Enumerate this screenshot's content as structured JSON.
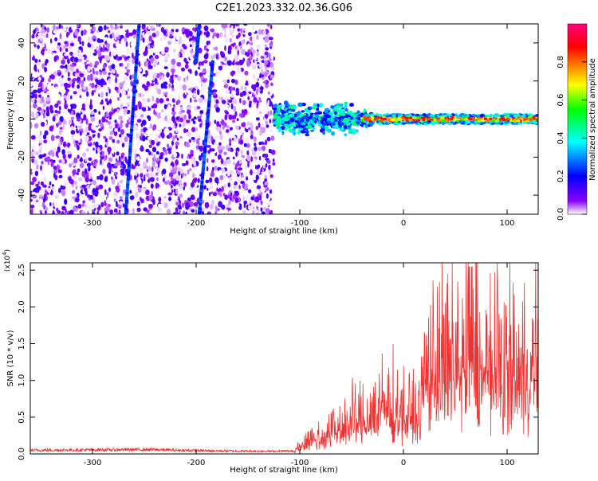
{
  "title": "C2E1.2023.332.02.36.G06",
  "chart_data": [
    {
      "type": "heatmap",
      "xlabel": "Height of straight line (km)",
      "ylabel": "Frequency (Hz)",
      "xlim": [
        -360,
        130
      ],
      "ylim": [
        -50,
        50
      ],
      "x_ticks": [
        -300,
        -200,
        -100,
        0,
        100
      ],
      "y_ticks": [
        -40,
        -20,
        0,
        20,
        40
      ],
      "grid": false,
      "colorbar": {
        "label": "Normalized spectral amplitude",
        "range": [
          0,
          1
        ],
        "ticks": [
          0.0,
          0.2,
          0.4,
          0.6,
          0.8
        ],
        "colors": [
          "#ffffff",
          "#8a00ff",
          "#0000ff",
          "#00ffff",
          "#00ff00",
          "#ffff00",
          "#ff8000",
          "#ff0000",
          "#ff0080"
        ]
      },
      "features": [
        {
          "kind": "scatter_noise",
          "x_range": [
            -360,
            -125
          ],
          "y_range": [
            -50,
            50
          ],
          "amplitude": 0.1
        },
        {
          "kind": "streak",
          "x_start": -268,
          "y_start": -50,
          "x_end": -255,
          "y_end": 50,
          "amplitude": 0.22
        },
        {
          "kind": "streak",
          "x_start": -197,
          "y_start": -50,
          "x_end": -184,
          "y_end": 30,
          "amplitude": 0.22
        },
        {
          "kind": "streak",
          "x_start": -200,
          "y_start": 30,
          "x_end": -197,
          "y_end": 50,
          "amplitude": 0.22
        },
        {
          "kind": "carrier",
          "x_range": [
            -125,
            130
          ],
          "freq_hz": 0,
          "amplitude": 0.7
        }
      ]
    },
    {
      "type": "line",
      "xlabel": "Height of straight line (km)",
      "ylabel": "SNR (10 * v/v)",
      "y_multiplier": "(x10^4)",
      "xlim": [
        -360,
        130
      ],
      "ylim": [
        0,
        26000
      ],
      "x_ticks": [
        -300,
        -200,
        -100,
        0,
        100
      ],
      "y_ticks": [
        0.0,
        0.5,
        1.0,
        1.5,
        2.0,
        2.5
      ],
      "y_tick_scale": 10000,
      "color": "#ee3333",
      "envelope": {
        "x": [
          -360,
          -300,
          -250,
          -200,
          -150,
          -105,
          -100,
          -90,
          -80,
          -60,
          -40,
          -30,
          -20,
          -10,
          0,
          10,
          14,
          18,
          20,
          30,
          40,
          50,
          60,
          70,
          80,
          90,
          100,
          110,
          120,
          130
        ],
        "y": [
          500,
          550,
          600,
          450,
          380,
          380,
          1200,
          2000,
          2500,
          4000,
          5000,
          6000,
          7000,
          6500,
          5500,
          6000,
          5000,
          8000,
          12000,
          13000,
          12500,
          14000,
          13000,
          14000,
          12500,
          13000,
          12000,
          11000,
          12500,
          12000
        ]
      }
    }
  ]
}
